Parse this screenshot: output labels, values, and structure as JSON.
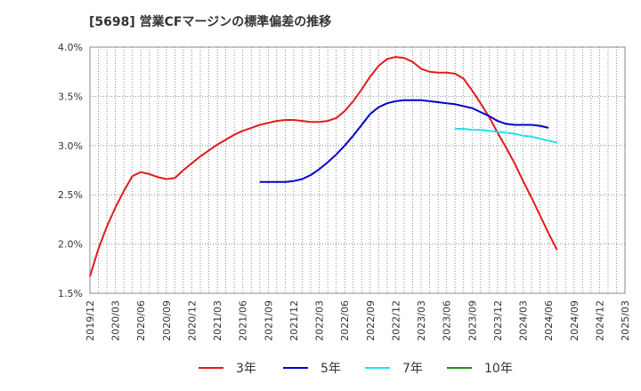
{
  "chart_data": {
    "type": "line",
    "title": "[5698]  営業CFマージンの標準偏差の推移",
    "xlabel": "",
    "ylabel": "",
    "ylim": [
      1.5,
      4.0
    ],
    "y_ticks": [
      "1.5%",
      "2.0%",
      "2.5%",
      "3.0%",
      "3.5%",
      "4.0%"
    ],
    "y_tick_values": [
      1.5,
      2.0,
      2.5,
      3.0,
      3.5,
      4.0
    ],
    "x_ticks": [
      "2019/12",
      "2020/03",
      "2020/06",
      "2020/09",
      "2020/12",
      "2021/03",
      "2021/06",
      "2021/09",
      "2021/12",
      "2022/03",
      "2022/06",
      "2022/09",
      "2022/12",
      "2023/03",
      "2023/06",
      "2023/09",
      "2023/12",
      "2024/03",
      "2024/06",
      "2024/09",
      "2024/12",
      "2025/03"
    ],
    "grid": true,
    "legend_position": "bottom",
    "series": [
      {
        "name": "3年",
        "color": "#e41a1c",
        "points": [
          [
            0,
            1.67
          ],
          [
            1,
            1.95
          ],
          [
            2,
            2.18
          ],
          [
            3,
            2.37
          ],
          [
            4,
            2.54
          ],
          [
            5,
            2.69
          ],
          [
            6,
            2.73
          ],
          [
            7,
            2.71
          ],
          [
            8,
            2.68
          ],
          [
            9,
            2.66
          ],
          [
            10,
            2.67
          ],
          [
            11,
            2.75
          ],
          [
            12,
            2.82
          ],
          [
            13,
            2.89
          ],
          [
            14,
            2.95
          ],
          [
            15,
            3.01
          ],
          [
            16,
            3.06
          ],
          [
            17,
            3.11
          ],
          [
            18,
            3.15
          ],
          [
            19,
            3.18
          ],
          [
            20,
            3.21
          ],
          [
            21,
            3.23
          ],
          [
            22,
            3.25
          ],
          [
            23,
            3.26
          ],
          [
            24,
            3.26
          ],
          [
            25,
            3.25
          ],
          [
            26,
            3.24
          ],
          [
            27,
            3.24
          ],
          [
            28,
            3.25
          ],
          [
            29,
            3.28
          ],
          [
            30,
            3.35
          ],
          [
            31,
            3.45
          ],
          [
            32,
            3.57
          ],
          [
            33,
            3.7
          ],
          [
            34,
            3.81
          ],
          [
            35,
            3.88
          ],
          [
            36,
            3.9
          ],
          [
            37,
            3.89
          ],
          [
            38,
            3.85
          ],
          [
            39,
            3.78
          ],
          [
            40,
            3.75
          ],
          [
            41,
            3.74
          ],
          [
            42,
            3.74
          ],
          [
            43,
            3.73
          ],
          [
            44,
            3.68
          ],
          [
            45,
            3.56
          ],
          [
            46,
            3.43
          ],
          [
            47,
            3.29
          ],
          [
            48,
            3.13
          ],
          [
            49,
            2.98
          ],
          [
            50,
            2.82
          ],
          [
            51,
            2.64
          ],
          [
            52,
            2.47
          ],
          [
            53,
            2.29
          ],
          [
            54,
            2.11
          ],
          [
            55,
            1.94
          ]
        ]
      },
      {
        "name": "5年",
        "color": "#0000cc",
        "points": [
          [
            20,
            2.63
          ],
          [
            21,
            2.63
          ],
          [
            22,
            2.63
          ],
          [
            23,
            2.63
          ],
          [
            24,
            2.64
          ],
          [
            25,
            2.66
          ],
          [
            26,
            2.7
          ],
          [
            27,
            2.76
          ],
          [
            28,
            2.83
          ],
          [
            29,
            2.91
          ],
          [
            30,
            3.0
          ],
          [
            31,
            3.1
          ],
          [
            32,
            3.21
          ],
          [
            33,
            3.32
          ],
          [
            34,
            3.39
          ],
          [
            35,
            3.43
          ],
          [
            36,
            3.45
          ],
          [
            37,
            3.46
          ],
          [
            38,
            3.46
          ],
          [
            39,
            3.46
          ],
          [
            40,
            3.45
          ],
          [
            41,
            3.44
          ],
          [
            42,
            3.43
          ],
          [
            43,
            3.42
          ],
          [
            44,
            3.4
          ],
          [
            45,
            3.38
          ],
          [
            46,
            3.34
          ],
          [
            47,
            3.3
          ],
          [
            48,
            3.25
          ],
          [
            49,
            3.22
          ],
          [
            50,
            3.21
          ],
          [
            51,
            3.21
          ],
          [
            52,
            3.21
          ],
          [
            53,
            3.2
          ],
          [
            54,
            3.18
          ]
        ]
      },
      {
        "name": "7年",
        "color": "#22e0ee",
        "points": [
          [
            43,
            3.17
          ],
          [
            44,
            3.17
          ],
          [
            45,
            3.16
          ],
          [
            46,
            3.16
          ],
          [
            47,
            3.15
          ],
          [
            48,
            3.14
          ],
          [
            49,
            3.13
          ],
          [
            50,
            3.12
          ],
          [
            51,
            3.1
          ],
          [
            52,
            3.09
          ],
          [
            53,
            3.07
          ],
          [
            54,
            3.05
          ],
          [
            55,
            3.03
          ]
        ]
      },
      {
        "name": "10年",
        "color": "#228b22",
        "points": []
      }
    ]
  }
}
